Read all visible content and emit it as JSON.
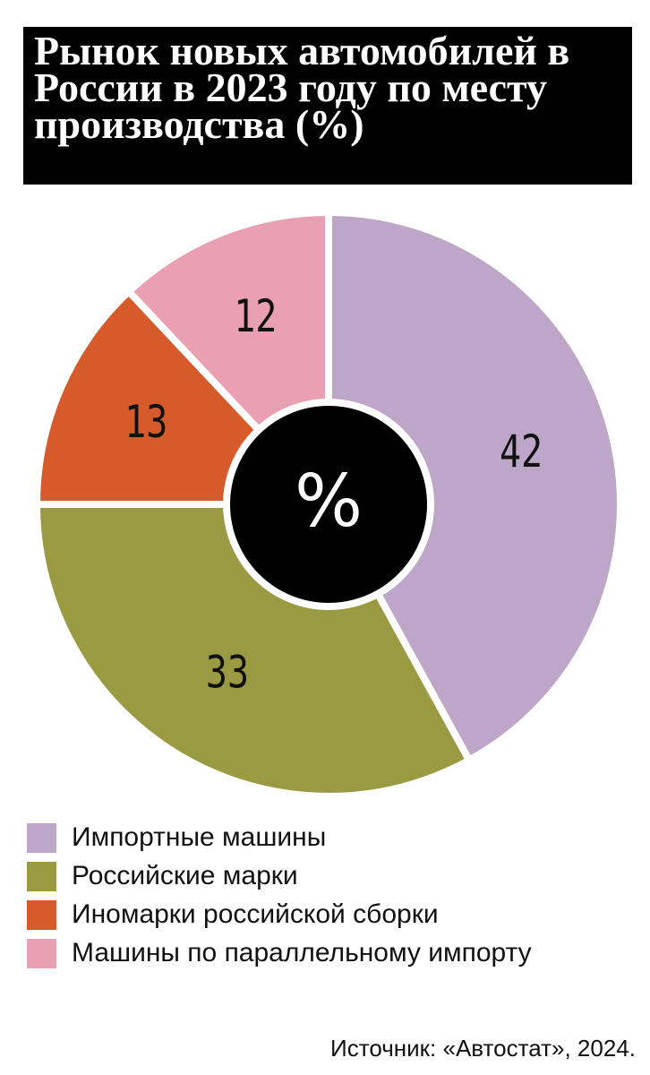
{
  "chart_data": {
    "type": "donut",
    "title": "Рынок новых автомобилей в России в 2023 году по месту производства (%)",
    "center_label": "%",
    "categories": [
      "Импортные машины",
      "Российские марки",
      "Иномарки российской сборки",
      "Машины по параллельному импорту"
    ],
    "values": [
      42,
      33,
      13,
      12
    ],
    "colors": [
      "#bda6c8",
      "#999a41",
      "#d75a2b",
      "#e8a0b2"
    ],
    "source": "Источник: «Автостат», 2024."
  }
}
